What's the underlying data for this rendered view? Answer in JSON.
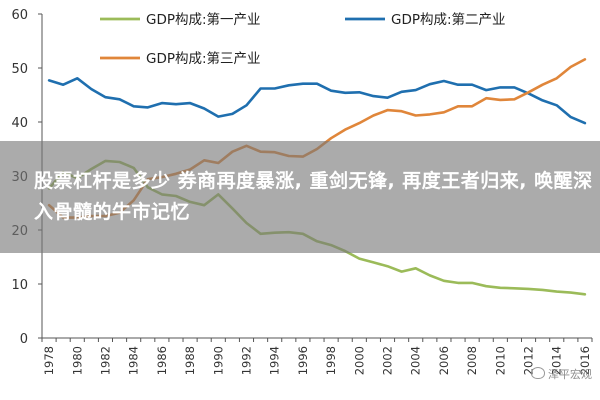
{
  "chart_data": {
    "type": "line",
    "title": "",
    "xlabel": "",
    "ylabel": "",
    "ylim": [
      0,
      60
    ],
    "yticks": [
      "0",
      "10",
      "20",
      "30",
      "40",
      "50",
      "60"
    ],
    "x": [
      1978,
      1979,
      1980,
      1981,
      1982,
      1983,
      1984,
      1985,
      1986,
      1987,
      1988,
      1989,
      1990,
      1991,
      1992,
      1993,
      1994,
      1995,
      1996,
      1997,
      1998,
      1999,
      2000,
      2001,
      2002,
      2003,
      2004,
      2005,
      2006,
      2007,
      2008,
      2009,
      2010,
      2011,
      2012,
      2013,
      2014,
      2015,
      2016
    ],
    "xtick_labels": [
      "1978",
      "1980",
      "1982",
      "1984",
      "1986",
      "1988",
      "1990",
      "1992",
      "1994",
      "1996",
      "1998",
      "2000",
      "2002",
      "2004",
      "2006",
      "2008",
      "2010",
      "2012",
      "2014",
      "2016"
    ],
    "legend_position": "top",
    "series": [
      {
        "name": "GDP构成:第一产业",
        "color": "#9BBB59",
        "values": [
          27.7,
          30.7,
          29.6,
          31.3,
          32.8,
          32.6,
          31.5,
          27.9,
          26.6,
          26.3,
          25.2,
          24.6,
          26.6,
          24.0,
          21.3,
          19.3,
          19.5,
          19.6,
          19.3,
          17.9,
          17.2,
          16.1,
          14.7,
          14.0,
          13.3,
          12.3,
          12.9,
          11.6,
          10.6,
          10.2,
          10.2,
          9.6,
          9.3,
          9.2,
          9.1,
          8.9,
          8.6,
          8.4,
          8.1
        ]
      },
      {
        "name": "GDP构成:第二产业",
        "color": "#1F6FAF",
        "values": [
          47.7,
          46.9,
          48.1,
          46.1,
          44.6,
          44.2,
          42.9,
          42.7,
          43.5,
          43.3,
          43.5,
          42.5,
          41.0,
          41.5,
          43.1,
          46.2,
          46.2,
          46.8,
          47.1,
          47.1,
          45.8,
          45.4,
          45.5,
          44.8,
          44.5,
          45.6,
          45.9,
          47.0,
          47.6,
          46.9,
          46.9,
          45.9,
          46.4,
          46.4,
          45.3,
          44.0,
          43.1,
          40.9,
          39.8
        ]
      },
      {
        "name": "GDP构成:第三产业",
        "color": "#E0863A",
        "values": [
          24.6,
          22.3,
          22.3,
          22.6,
          22.6,
          23.2,
          25.5,
          29.4,
          29.8,
          30.4,
          31.2,
          32.9,
          32.4,
          34.5,
          35.6,
          34.5,
          34.4,
          33.7,
          33.6,
          35.0,
          37.0,
          38.6,
          39.8,
          41.2,
          42.2,
          42.0,
          41.2,
          41.4,
          41.8,
          42.9,
          42.9,
          44.4,
          44.1,
          44.2,
          45.5,
          46.9,
          48.1,
          50.2,
          51.6
        ]
      }
    ]
  },
  "overlay": {
    "headline": "股票杠杆是多少 券商再度暴涨, 重剑无锋, 再度王者归来, 唤醒深入骨髓的牛市记忆"
  },
  "watermark": {
    "text": "泽平宏观"
  }
}
